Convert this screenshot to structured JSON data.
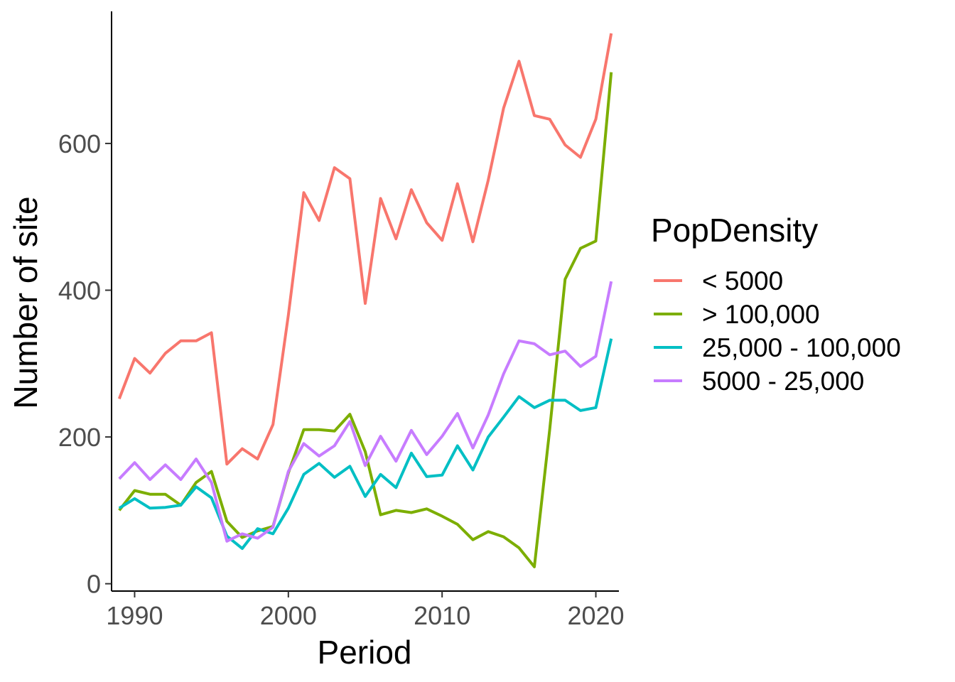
{
  "chart_data": {
    "type": "line",
    "xlabel": "Period",
    "ylabel": "Number of site",
    "xlim": [
      1988.5,
      2021.5
    ],
    "ylim": [
      -10,
      780
    ],
    "xticks": [
      1990,
      2000,
      2010,
      2020
    ],
    "yticks": [
      0,
      200,
      400,
      600
    ],
    "grid": false,
    "legend": {
      "title": "PopDensity",
      "position": "right"
    },
    "x": [
      1989,
      1990,
      1991,
      1992,
      1993,
      1994,
      1995,
      1996,
      1997,
      1998,
      1999,
      2000,
      2001,
      2002,
      2003,
      2004,
      2005,
      2006,
      2007,
      2008,
      2009,
      2010,
      2011,
      2012,
      2013,
      2014,
      2015,
      2016,
      2017,
      2018,
      2019,
      2020,
      2021
    ],
    "series": [
      {
        "name": "< 5000",
        "color": "#F8766D",
        "values": [
          252,
          307,
          287,
          314,
          331,
          331,
          342,
          163,
          184,
          170,
          217,
          366,
          533,
          495,
          567,
          552,
          382,
          525,
          470,
          537,
          492,
          468,
          545,
          466,
          550,
          648,
          712,
          638,
          633,
          598,
          581,
          633,
          750
        ]
      },
      {
        "name": "> 100,000",
        "color": "#7CAE00",
        "values": [
          100,
          127,
          122,
          122,
          107,
          138,
          153,
          85,
          63,
          72,
          78,
          151,
          210,
          210,
          208,
          231,
          180,
          94,
          100,
          97,
          102,
          92,
          81,
          60,
          71,
          64,
          49,
          23,
          210,
          415,
          457,
          467,
          697
        ]
      },
      {
        "name": "25,000 - 100,000",
        "color": "#00BFC4",
        "values": [
          103,
          116,
          103,
          104,
          107,
          132,
          117,
          65,
          48,
          75,
          68,
          103,
          149,
          164,
          145,
          160,
          119,
          149,
          131,
          178,
          146,
          148,
          188,
          155,
          200,
          227,
          255,
          240,
          250,
          250,
          236,
          240,
          334
        ]
      },
      {
        "name": "5000 - 25,000",
        "color": "#C77CFF",
        "values": [
          143,
          165,
          142,
          162,
          142,
          170,
          138,
          58,
          68,
          62,
          77,
          153,
          191,
          174,
          188,
          221,
          161,
          201,
          167,
          209,
          176,
          201,
          232,
          185,
          230,
          286,
          331,
          327,
          312,
          317,
          296,
          310,
          412
        ]
      }
    ]
  }
}
